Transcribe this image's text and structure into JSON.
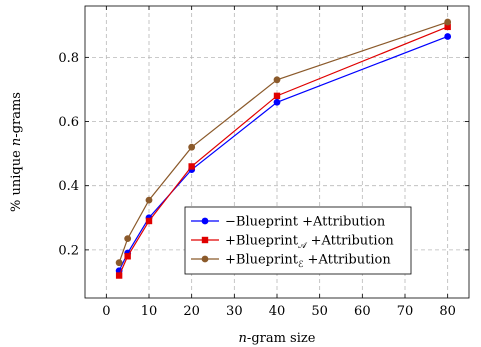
{
  "chart_data": {
    "type": "line",
    "title": "",
    "xlabel": {
      "prefix": "n",
      "suffix": "-gram size"
    },
    "ylabel": {
      "prefix": "% unique ",
      "italic": "n",
      "suffix": "-grams"
    },
    "xlim": [
      -5,
      85
    ],
    "ylim": [
      0.05,
      0.96
    ],
    "xticks": [
      0,
      10,
      20,
      30,
      40,
      50,
      60,
      70,
      80
    ],
    "yticks": [
      0.2,
      0.4,
      0.6,
      0.8
    ],
    "grid": true,
    "legend_position": "lower-right",
    "series": [
      {
        "name": {
          "sign": "−",
          "base": "Blueprint",
          "subscript": "",
          "rest": " +Attribution"
        },
        "color": "#0000ff",
        "marker": "circle",
        "x": [
          3,
          5,
          10,
          20,
          40,
          80
        ],
        "y": [
          0.135,
          0.19,
          0.3,
          0.45,
          0.66,
          0.865
        ]
      },
      {
        "name": {
          "sign": "+",
          "base": "Blueprint",
          "subscript": "𝒜",
          "rest": " +Attribution"
        },
        "color": "#e00000",
        "marker": "square",
        "x": [
          3,
          5,
          10,
          20,
          40,
          80
        ],
        "y": [
          0.12,
          0.18,
          0.29,
          0.46,
          0.68,
          0.895
        ]
      },
      {
        "name": {
          "sign": "+",
          "base": "Blueprint",
          "subscript": "ℰ",
          "rest": " +Attribution"
        },
        "color": "#8b5a2b",
        "marker": "circle",
        "x": [
          3,
          5,
          10,
          20,
          40,
          80
        ],
        "y": [
          0.16,
          0.235,
          0.355,
          0.52,
          0.73,
          0.91
        ]
      }
    ]
  }
}
